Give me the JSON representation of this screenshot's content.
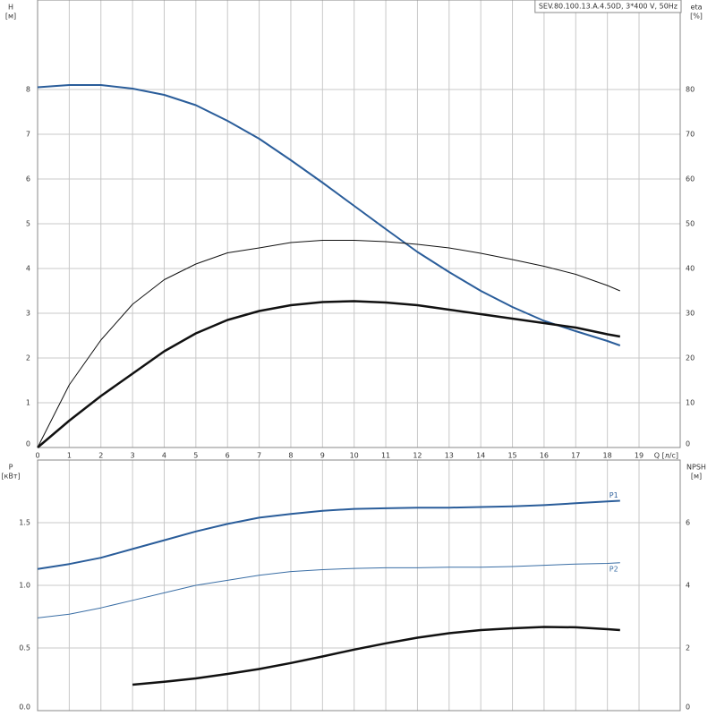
{
  "chart_data": [
    {
      "type": "line",
      "title": "SEV.80.100.13.A.4.50D, 3*400 V, 50Hz",
      "y_label": "H",
      "y_unit": "[м]",
      "y2_label": "eta",
      "y2_unit": "[%]",
      "x_label": "Q [л/с]",
      "x": [
        0,
        1,
        2,
        3,
        4,
        5,
        6,
        7,
        8,
        9,
        10,
        11,
        12,
        13,
        14,
        15,
        16,
        17,
        18,
        18.4
      ],
      "xlim": [
        0,
        20.3
      ],
      "xticks": [
        0,
        1,
        2,
        3,
        4,
        5,
        6,
        7,
        8,
        9,
        10,
        11,
        12,
        13,
        14,
        15,
        16,
        17,
        18,
        19
      ],
      "ylim": [
        0,
        10
      ],
      "yticks": [
        0,
        1,
        2,
        3,
        4,
        5,
        6,
        7,
        8
      ],
      "y2lim": [
        0,
        100
      ],
      "y2ticks": [
        0,
        10,
        20,
        30,
        40,
        50,
        60,
        70,
        80
      ],
      "grid": true,
      "series": [
        {
          "color": "#2a5d9a",
          "line_width": 2,
          "axis": "y",
          "values": [
            8.05,
            8.1,
            8.1,
            8.02,
            7.88,
            7.65,
            7.3,
            6.9,
            6.42,
            5.92,
            5.4,
            4.88,
            4.37,
            3.92,
            3.5,
            3.14,
            2.83,
            2.6,
            2.38,
            2.28
          ]
        },
        {
          "color": "#111111",
          "line_width": 1,
          "axis": "y2",
          "values": [
            0,
            14,
            24,
            32,
            37.5,
            41,
            43.5,
            44.6,
            45.8,
            46.3,
            46.3,
            46,
            45.4,
            44.6,
            43.4,
            42,
            40.5,
            38.7,
            36.2,
            35
          ]
        },
        {
          "color": "#111111",
          "line_width": 2.5,
          "axis": "y2",
          "values": [
            0,
            6,
            11.5,
            16.5,
            21.5,
            25.5,
            28.5,
            30.5,
            31.8,
            32.5,
            32.7,
            32.4,
            31.8,
            30.8,
            29.8,
            28.8,
            27.8,
            26.8,
            25.3,
            24.8
          ]
        }
      ]
    },
    {
      "type": "line",
      "y_label": "P",
      "y_unit": "[кВт]",
      "y2_label": "NPSH",
      "y2_unit": "[м]",
      "x": [
        0,
        1,
        2,
        3,
        4,
        5,
        6,
        7,
        8,
        9,
        10,
        11,
        12,
        13,
        14,
        15,
        16,
        17,
        18,
        18.4
      ],
      "xlim": [
        0,
        20.3
      ],
      "ylim": [
        0,
        2
      ],
      "yticks": [
        {
          "value": 0,
          "label": "0.0"
        },
        {
          "value": 0.5,
          "label": "0.5"
        },
        {
          "value": 1,
          "label": "1.0"
        },
        {
          "value": 1.5,
          "label": "1.5"
        }
      ],
      "y2lim": [
        0,
        8
      ],
      "y2ticks": [
        0,
        2,
        4,
        6
      ],
      "grid": true,
      "series": [
        {
          "name": "P1",
          "color": "#2a5d9a",
          "line_width": 2,
          "axis": "y",
          "values": [
            1.13,
            1.17,
            1.22,
            1.29,
            1.36,
            1.43,
            1.49,
            1.54,
            1.57,
            1.595,
            1.61,
            1.615,
            1.62,
            1.62,
            1.625,
            1.63,
            1.64,
            1.655,
            1.67,
            1.675
          ]
        },
        {
          "name": "P2",
          "color": "#3a6ea5",
          "line_width": 1,
          "axis": "y",
          "values": [
            0.74,
            0.77,
            0.82,
            0.88,
            0.94,
            1.0,
            1.04,
            1.08,
            1.11,
            1.125,
            1.135,
            1.14,
            1.14,
            1.145,
            1.145,
            1.15,
            1.16,
            1.17,
            1.175,
            1.18
          ]
        },
        {
          "color": "#111111",
          "line_width": 2.5,
          "axis": "y2",
          "values": [
            null,
            null,
            null,
            0.83,
            0.92,
            1.03,
            1.17,
            1.33,
            1.52,
            1.73,
            1.95,
            2.15,
            2.33,
            2.47,
            2.57,
            2.63,
            2.67,
            2.66,
            2.6,
            2.57
          ]
        }
      ]
    }
  ]
}
